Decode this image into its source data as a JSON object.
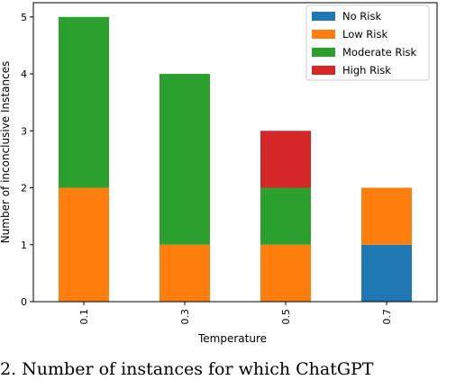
{
  "chart_data": {
    "type": "bar",
    "stacked": true,
    "categories": [
      "0.1",
      "0.3",
      "0.5",
      "0.7"
    ],
    "series": [
      {
        "name": "No Risk",
        "color": "#1f77b4",
        "values": [
          0,
          0,
          0,
          1
        ]
      },
      {
        "name": "Low Risk",
        "color": "#ff7f0e",
        "values": [
          2,
          1,
          1,
          1
        ]
      },
      {
        "name": "Moderate Risk",
        "color": "#2ca02c",
        "values": [
          3,
          3,
          1,
          0
        ]
      },
      {
        "name": "High Risk",
        "color": "#d62728",
        "values": [
          0,
          0,
          1,
          0
        ]
      }
    ],
    "title": "",
    "xlabel": "Temperature",
    "ylabel": "Number of inconclusive Instances",
    "ylim": [
      0,
      5.25
    ],
    "yticks": [
      0,
      1,
      2,
      3,
      4,
      5
    ],
    "legend_position": "top-right",
    "grid": false
  },
  "caption": "2.  Number of instances for which ChatGPT"
}
